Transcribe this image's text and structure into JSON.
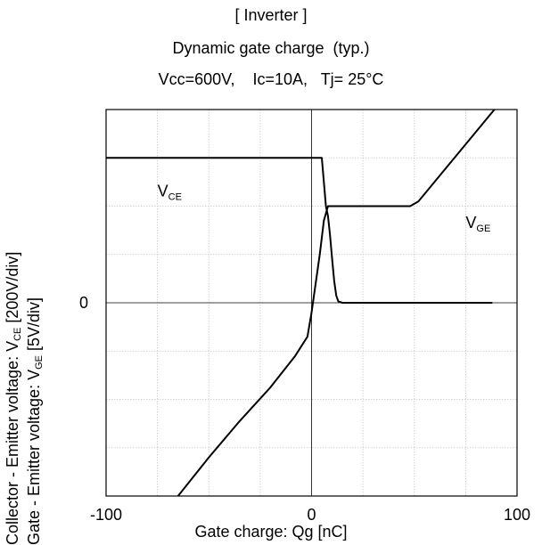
{
  "chart_data": {
    "type": "line",
    "title": "[ Inverter ]",
    "subtitle": "Dynamic gate charge  (typ.)",
    "conditions": "Vcc=600V,    Ic=10A,   Tj= 25°C",
    "xlabel": "Gate charge: Qg [nC]",
    "ylabel_primary": {
      "prefix": "Collector - Emitter voltage: V",
      "sub": "CE",
      "suffix": " [200V/div]"
    },
    "ylabel_secondary": {
      "prefix": "Gate - Emitter voltage:    V",
      "sub": "GE",
      "suffix": " [5V/div]"
    },
    "xlim": [
      -100,
      100
    ],
    "ylim_div": [
      -4,
      4
    ],
    "x_ticks": [
      -100,
      0,
      100
    ],
    "x_tick_labels": [
      "-100",
      "0",
      "100"
    ],
    "x_minor_step": 25,
    "y_tick_labels": [
      {
        "y": 0,
        "label": "0"
      }
    ],
    "grid": true,
    "series": [
      {
        "name": "VCE",
        "label": {
          "main": "V",
          "sub": "CE"
        },
        "unit_per_div": "200V/div",
        "points": [
          [
            -100,
            3.0
          ],
          [
            5,
            3.0
          ],
          [
            7,
            2.0
          ],
          [
            8,
            1.8
          ],
          [
            9,
            1.4
          ],
          [
            10,
            0.9
          ],
          [
            11,
            0.45
          ],
          [
            12,
            0.15
          ],
          [
            13,
            0.03
          ],
          [
            15,
            0.0
          ],
          [
            88,
            0.0
          ]
        ]
      },
      {
        "name": "VGE",
        "label": {
          "main": "V",
          "sub": "GE"
        },
        "unit_per_div": "5V/div",
        "points": [
          [
            -65,
            -4.0
          ],
          [
            -50,
            -3.2
          ],
          [
            -35,
            -2.45
          ],
          [
            -20,
            -1.75
          ],
          [
            -8,
            -1.1
          ],
          [
            -2,
            -0.7
          ],
          [
            0,
            -0.2
          ],
          [
            2,
            0.4
          ],
          [
            4,
            1.0
          ],
          [
            6,
            1.7
          ],
          [
            8,
            2.0
          ],
          [
            48,
            2.0
          ],
          [
            52,
            2.1
          ],
          [
            89,
            4.0
          ]
        ]
      }
    ]
  }
}
